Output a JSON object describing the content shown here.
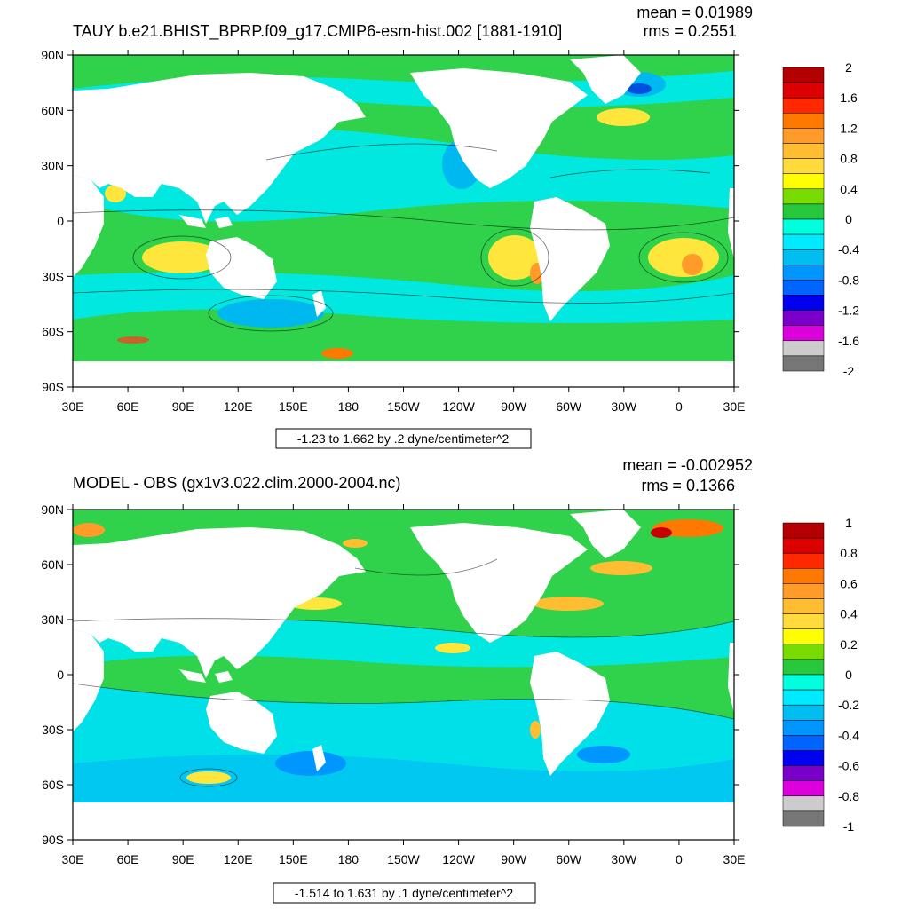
{
  "panels": [
    {
      "title": "TAUY b.e21.BHIST_BPRP.f09_g17.CMIP6-esm-hist.002 [1881-1910]",
      "mean": "mean = 0.01989",
      "rms": "rms = 0.2551",
      "contour_info": "-1.23 to 1.662 by .2 dyne/centimeter^2",
      "colorbar_labels": [
        "2",
        "1.6",
        "1.2",
        "0.8",
        "0.4",
        "0",
        "-0.4",
        "-0.8",
        "-1.2",
        "-1.6",
        "-2"
      ],
      "colorbar_colors": [
        "#b40000",
        "#dc0000",
        "#ff2800",
        "#ff7800",
        "#ff9b28",
        "#ffbe32",
        "#ffdc3c",
        "#ffff00",
        "#78dc00",
        "#28c83c",
        "#00ffdc",
        "#00ebff",
        "#00bef0",
        "#0096ff",
        "#0064ff",
        "#0000f0",
        "#7800c8",
        "#dc00dc",
        "#cccccc",
        "#777777"
      ]
    },
    {
      "title": "MODEL - OBS (gx1v3.022.clim.2000-2004.nc)",
      "mean": "mean = -0.002952",
      "rms": "rms = 0.1366",
      "contour_info": "-1.514 to 1.631 by .1 dyne/centimeter^2",
      "colorbar_labels": [
        "1",
        "0.8",
        "0.6",
        "0.4",
        "0.2",
        "0",
        "-0.2",
        "-0.4",
        "-0.6",
        "-0.8",
        "-1"
      ],
      "colorbar_colors": [
        "#b40000",
        "#dc0000",
        "#ff2800",
        "#ff7800",
        "#ff9b28",
        "#ffbe32",
        "#ffdc3c",
        "#ffff00",
        "#78dc00",
        "#28c83c",
        "#00ffdc",
        "#00ebff",
        "#00bef0",
        "#0096ff",
        "#0064ff",
        "#0000f0",
        "#7800c8",
        "#dc00dc",
        "#cccccc",
        "#777777"
      ]
    }
  ],
  "lat_labels": [
    "90N",
    "60N",
    "30N",
    "0",
    "30S",
    "60S",
    "90S"
  ],
  "lon_labels": [
    "30E",
    "60E",
    "90E",
    "120E",
    "150E",
    "180",
    "150W",
    "120W",
    "90W",
    "60W",
    "30W",
    "0",
    "30E"
  ],
  "colors": {
    "ocean_base": "#2fd24a",
    "land": "#ffffff",
    "frame": "#000000"
  }
}
